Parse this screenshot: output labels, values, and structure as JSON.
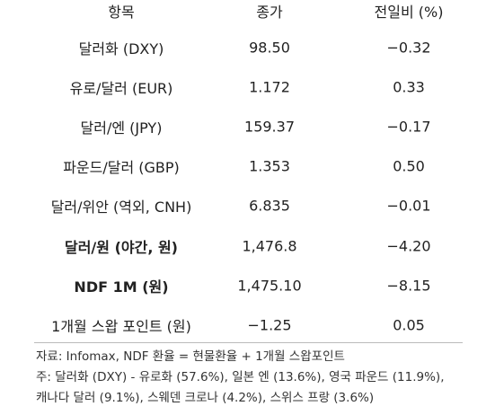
{
  "table": {
    "header": [
      "항목",
      "종가",
      "전일비 (%)"
    ],
    "rows": [
      [
        "달러화 (DXY)",
        "98.50",
        "−0.32"
      ],
      [
        "유로/달러 (EUR)",
        "1.172",
        "0.33"
      ],
      [
        "달러/엔 (JPY)",
        "159.37",
        "−0.17"
      ],
      [
        "파운드/달러 (GBP)",
        "1.353",
        "0.50"
      ],
      [
        "달러/위안 (역외, CNH)",
        "6.835",
        "−0.01"
      ],
      [
        "달러/원 (야간, 원)",
        "1,476.8",
        "−4.20"
      ],
      [
        "NDF 1M (원)",
        "1,475.10",
        "−8.15"
      ],
      [
        "1개월 스왑 포인트 (원)",
        "−1.25",
        "0.05"
      ]
    ]
  },
  "notes": [
    "자료: Infomax, NDF 환율 = 현물환율 + 1개월 스왑포인트",
    "주: 달러화 (DXY) - 유로화 (57.6%), 일본 엔 (13.6%), 영국 파운드 (11.9%),",
    "캐나다 달러 (9.1%), 스웨덴 크로나 (4.2%), 스위스 프랑 (3.6%)"
  ]
}
